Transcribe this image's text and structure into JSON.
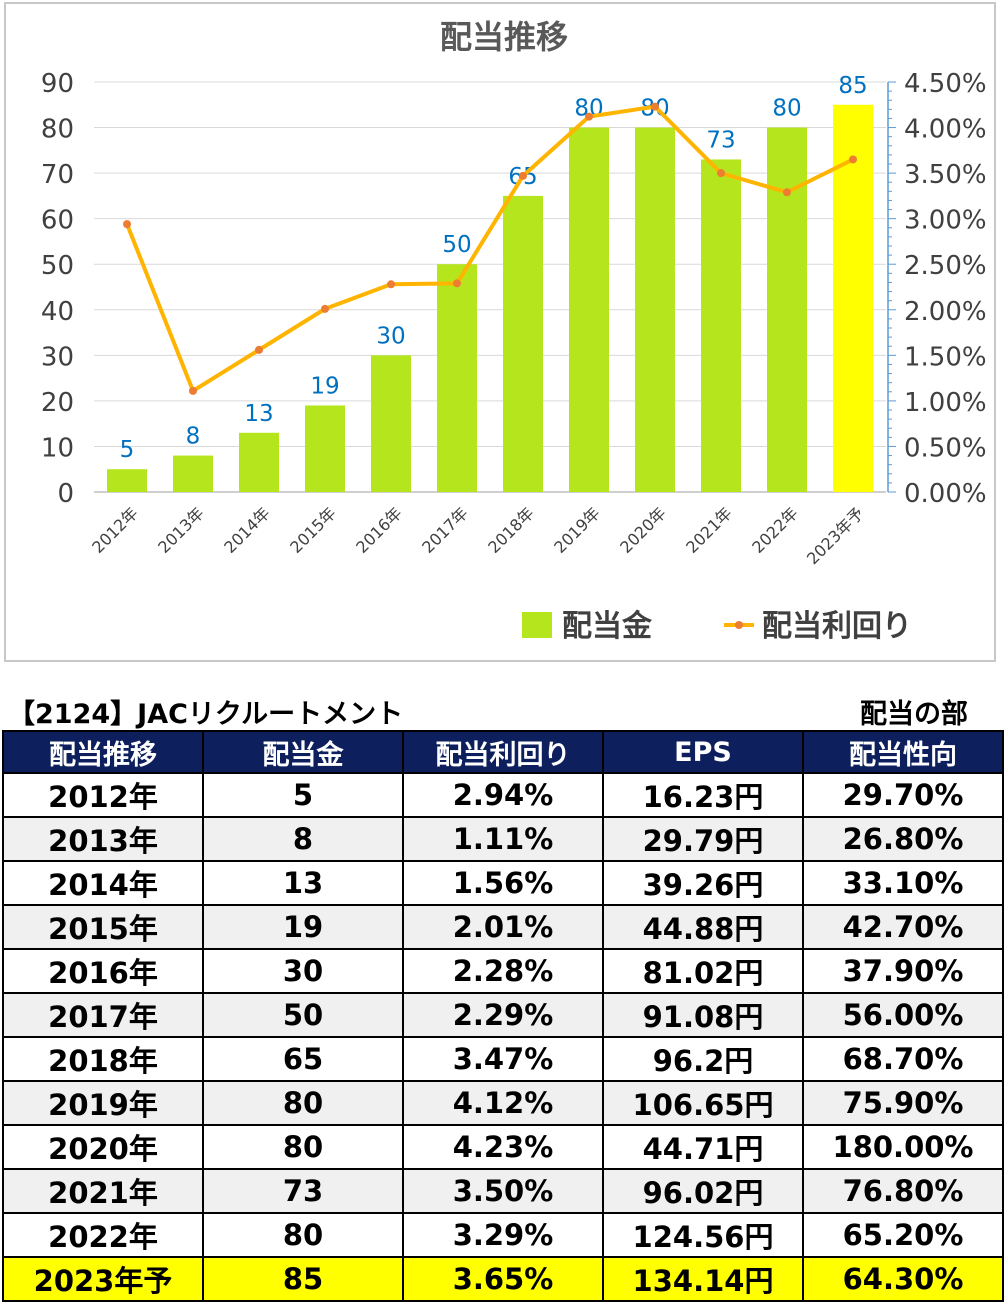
{
  "chart_data": {
    "type": "bar+line",
    "title": "配当推移",
    "categories": [
      "2012年",
      "2013年",
      "2014年",
      "2015年",
      "2016年",
      "2017年",
      "2018年",
      "2019年",
      "2020年",
      "2021年",
      "2022年",
      "2023年予"
    ],
    "series": [
      {
        "name": "配当金",
        "type": "bar",
        "axis": "left",
        "color": "#b5e61d",
        "highlight_color": "#ffff00",
        "highlight_index": 11,
        "values": [
          5,
          8,
          13,
          19,
          30,
          50,
          65,
          80,
          80,
          73,
          80,
          85
        ]
      },
      {
        "name": "配当利回り",
        "type": "line",
        "axis": "right",
        "color": "#ffb400",
        "marker_color": "#ed7d31",
        "values": [
          2.94,
          1.11,
          1.56,
          2.01,
          2.28,
          2.29,
          3.47,
          4.12,
          4.23,
          3.5,
          3.29,
          3.65
        ]
      }
    ],
    "y_left": {
      "min": 0,
      "max": 90,
      "step": 10,
      "ticks": [
        "0",
        "10",
        "20",
        "30",
        "40",
        "50",
        "60",
        "70",
        "80",
        "90"
      ]
    },
    "y_right": {
      "min": 0,
      "max": 4.5,
      "step": 0.5,
      "ticks": [
        "0.00%",
        "0.50%",
        "1.00%",
        "1.50%",
        "2.00%",
        "2.50%",
        "3.00%",
        "3.50%",
        "4.00%",
        "4.50%"
      ]
    },
    "data_label_color": "#0070c0",
    "legend": "bottom",
    "grid": true
  },
  "header": {
    "company": "【2124】JACリクルートメント",
    "section": "配当の部"
  },
  "table": {
    "columns": [
      "配当推移",
      "配当金",
      "配当利回り",
      "EPS",
      "配当性向"
    ],
    "rows": [
      [
        "2012年",
        "5",
        "2.94%",
        "16.23円",
        "29.70%"
      ],
      [
        "2013年",
        "8",
        "1.11%",
        "29.79円",
        "26.80%"
      ],
      [
        "2014年",
        "13",
        "1.56%",
        "39.26円",
        "33.10%"
      ],
      [
        "2015年",
        "19",
        "2.01%",
        "44.88円",
        "42.70%"
      ],
      [
        "2016年",
        "30",
        "2.28%",
        "81.02円",
        "37.90%"
      ],
      [
        "2017年",
        "50",
        "2.29%",
        "91.08円",
        "56.00%"
      ],
      [
        "2018年",
        "65",
        "3.47%",
        "96.2円",
        "68.70%"
      ],
      [
        "2019年",
        "80",
        "4.12%",
        "106.65円",
        "75.90%"
      ],
      [
        "2020年",
        "80",
        "4.23%",
        "44.71円",
        "180.00%"
      ],
      [
        "2021年",
        "73",
        "3.50%",
        "96.02円",
        "76.80%"
      ],
      [
        "2022年",
        "80",
        "3.29%",
        "124.56円",
        "65.20%"
      ],
      [
        "2023年予",
        "85",
        "3.65%",
        "134.14円",
        "64.30%"
      ]
    ],
    "highlight_row_index": 11
  }
}
